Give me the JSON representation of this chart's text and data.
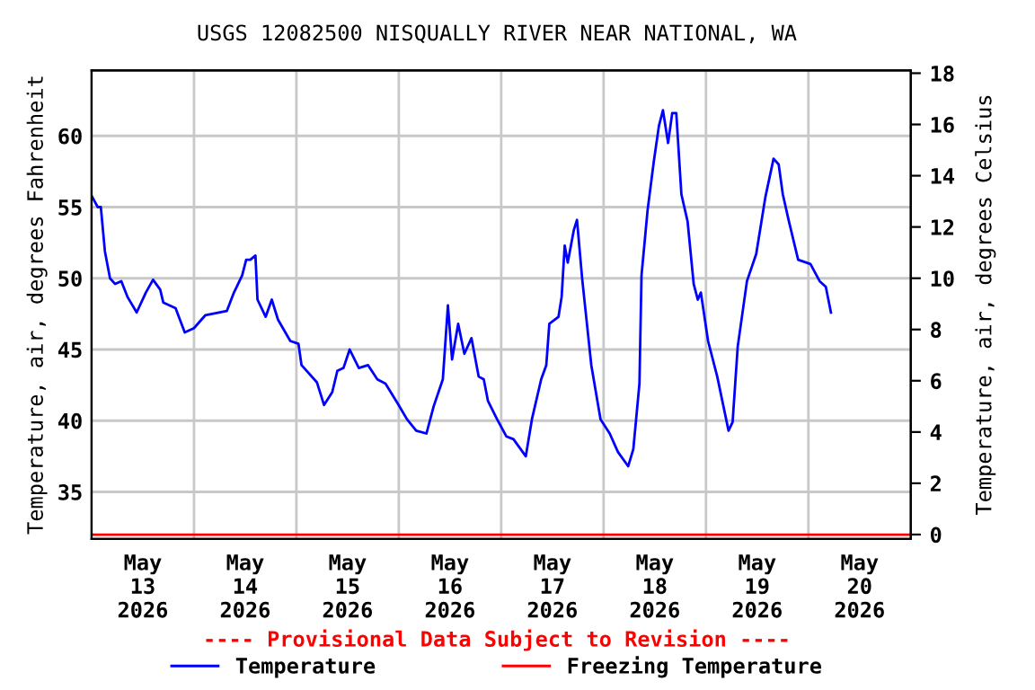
{
  "chart_data": {
    "type": "line",
    "title": "USGS 12082500 NISQUALLY RIVER NEAR NATIONAL, WA",
    "ylabel": "Temperature, air, degrees Fahrenheit",
    "y2label": "Temperature, air, degrees Celsius",
    "annotations": [
      "---- Provisional Data Subject to Revision ----"
    ],
    "series": [
      {
        "name": "Temperature",
        "color": "#0000ff",
        "x": [
          "2026-05-13T00:00",
          "2026-05-13T01:26",
          "2026-05-13T02:10",
          "2026-05-13T03:07",
          "2026-05-13T04:19",
          "2026-05-13T05:31",
          "2026-05-13T06:58",
          "2026-05-13T08:24",
          "2026-05-13T10:34",
          "2026-05-13T12:43",
          "2026-05-13T14:24",
          "2026-05-13T16:05",
          "2026-05-13T16:48",
          "2026-05-13T19:41",
          "2026-05-13T21:50",
          "2026-05-14T00:00",
          "2026-05-14T02:38",
          "2026-05-14T07:41",
          "2026-05-14T09:22",
          "2026-05-14T11:17",
          "2026-05-14T12:14",
          "2026-05-14T13:12",
          "2026-05-14T14:24",
          "2026-05-14T14:53",
          "2026-05-14T16:48",
          "2026-05-14T18:14",
          "2026-05-14T19:41",
          "2026-05-14T22:34",
          "2026-05-15T00:29",
          "2026-05-15T01:12",
          "2026-05-15T04:48",
          "2026-05-15T06:29",
          "2026-05-15T08:24",
          "2026-05-15T09:36",
          "2026-05-15T11:02",
          "2026-05-15T12:29",
          "2026-05-15T14:38",
          "2026-05-15T16:48",
          "2026-05-15T18:58",
          "2026-05-15T20:53",
          "2026-05-15T23:46",
          "2026-05-16T01:55",
          "2026-05-16T04:05",
          "2026-05-16T06:29",
          "2026-05-16T08:10",
          "2026-05-16T10:19",
          "2026-05-16T11:31",
          "2026-05-16T12:29",
          "2026-05-16T13:55",
          "2026-05-16T15:22",
          "2026-05-16T17:02",
          "2026-05-16T18:43",
          "2026-05-16T19:55",
          "2026-05-16T20:53",
          "2026-05-16T23:02",
          "2026-05-17T01:12",
          "2026-05-17T02:53",
          "2026-05-17T05:46",
          "2026-05-17T07:12",
          "2026-05-17T09:22",
          "2026-05-17T10:34",
          "2026-05-17T11:17",
          "2026-05-17T13:26",
          "2026-05-17T14:10",
          "2026-05-17T14:53",
          "2026-05-17T15:36",
          "2026-05-17T17:02",
          "2026-05-17T17:46",
          "2026-05-17T18:58",
          "2026-05-17T21:07",
          "2026-05-17T23:17",
          "2026-05-18T01:26",
          "2026-05-18T03:22",
          "2026-05-18T05:46",
          "2026-05-18T06:58",
          "2026-05-18T08:24",
          "2026-05-18T08:53",
          "2026-05-18T10:19",
          "2026-05-18T11:46",
          "2026-05-18T12:58",
          "2026-05-18T13:55",
          "2026-05-18T15:07",
          "2026-05-18T16:05",
          "2026-05-18T17:02",
          "2026-05-18T18:14",
          "2026-05-18T19:41",
          "2026-05-18T21:07",
          "2026-05-18T22:05",
          "2026-05-18T22:48",
          "2026-05-19T00:29",
          "2026-05-19T02:38",
          "2026-05-19T05:17",
          "2026-05-19T06:14",
          "2026-05-19T07:26",
          "2026-05-19T09:36",
          "2026-05-19T11:46",
          "2026-05-19T13:55",
          "2026-05-19T15:50",
          "2026-05-19T17:02",
          "2026-05-19T18:00",
          "2026-05-19T19:26",
          "2026-05-19T21:36",
          "2026-05-20T00:29",
          "2026-05-20T02:38",
          "2026-05-20T04:05",
          "2026-05-20T05:17"
        ],
        "values": [
          55.8,
          55.0,
          55.0,
          51.9,
          50.0,
          49.6,
          49.8,
          48.7,
          47.6,
          49.0,
          49.9,
          49.2,
          48.3,
          47.9,
          46.2,
          46.5,
          47.4,
          47.7,
          49.0,
          50.2,
          51.3,
          51.3,
          51.6,
          48.5,
          47.3,
          48.5,
          47.1,
          45.6,
          45.4,
          43.9,
          42.7,
          41.1,
          42.0,
          43.5,
          43.7,
          45.0,
          43.7,
          43.9,
          42.9,
          42.6,
          41.2,
          40.1,
          39.3,
          39.1,
          41.0,
          42.9,
          48.1,
          44.3,
          46.8,
          44.7,
          45.8,
          43.1,
          42.9,
          41.4,
          40.1,
          38.9,
          38.7,
          37.5,
          40.1,
          42.9,
          43.9,
          46.8,
          47.3,
          48.7,
          52.3,
          51.1,
          53.4,
          54.1,
          50.0,
          43.9,
          40.1,
          39.1,
          37.8,
          36.8,
          38.0,
          42.6,
          50.2,
          54.8,
          58.2,
          60.7,
          61.8,
          59.5,
          61.6,
          61.6,
          55.9,
          54.0,
          49.6,
          48.5,
          49.0,
          45.6,
          43.1,
          39.3,
          39.9,
          45.2,
          49.8,
          51.7,
          55.7,
          58.4,
          58.0,
          55.9,
          54.0,
          51.3,
          51.0,
          49.8,
          49.4,
          47.6
        ]
      }
    ],
    "ref_lines": [
      {
        "axis": "y",
        "value": 32,
        "label": "Freezing Temperature",
        "color": "#ff0000"
      }
    ],
    "xlim": [
      "2026-05-13T00:00",
      "2026-05-21T00:00"
    ],
    "xticks": [
      {
        "value": "2026-05-13T12:00",
        "label": "May\n13\n2026"
      },
      {
        "value": "2026-05-14T12:00",
        "label": "May\n14\n2026"
      },
      {
        "value": "2026-05-15T12:00",
        "label": "May\n15\n2026"
      },
      {
        "value": "2026-05-16T12:00",
        "label": "May\n16\n2026"
      },
      {
        "value": "2026-05-17T12:00",
        "label": "May\n17\n2026"
      },
      {
        "value": "2026-05-18T12:00",
        "label": "May\n18\n2026"
      },
      {
        "value": "2026-05-19T12:00",
        "label": "May\n19\n2026"
      },
      {
        "value": "2026-05-20T12:00",
        "label": "May\n20\n2026"
      },
      {
        "value": "2026-05-14T00:00",
        "label": null
      },
      {
        "value": "2026-05-15T00:00",
        "label": null
      },
      {
        "value": "2026-05-16T00:00",
        "label": null
      },
      {
        "value": "2026-05-17T00:00",
        "label": null
      },
      {
        "value": "2026-05-18T00:00",
        "label": null
      },
      {
        "value": "2026-05-19T00:00",
        "label": null
      },
      {
        "value": "2026-05-20T00:00",
        "label": null
      }
    ],
    "ylim": [
      31.7,
      64.6
    ],
    "yticks": [
      35,
      40,
      45,
      50,
      55,
      60
    ],
    "y2lim": [
      -0.17,
      18.11
    ],
    "y2ticks": [
      0,
      2,
      4,
      6,
      8,
      10,
      12,
      14,
      16,
      18
    ],
    "grid": true,
    "legend": "bottom",
    "marker": "none",
    "line_style": "solid"
  }
}
